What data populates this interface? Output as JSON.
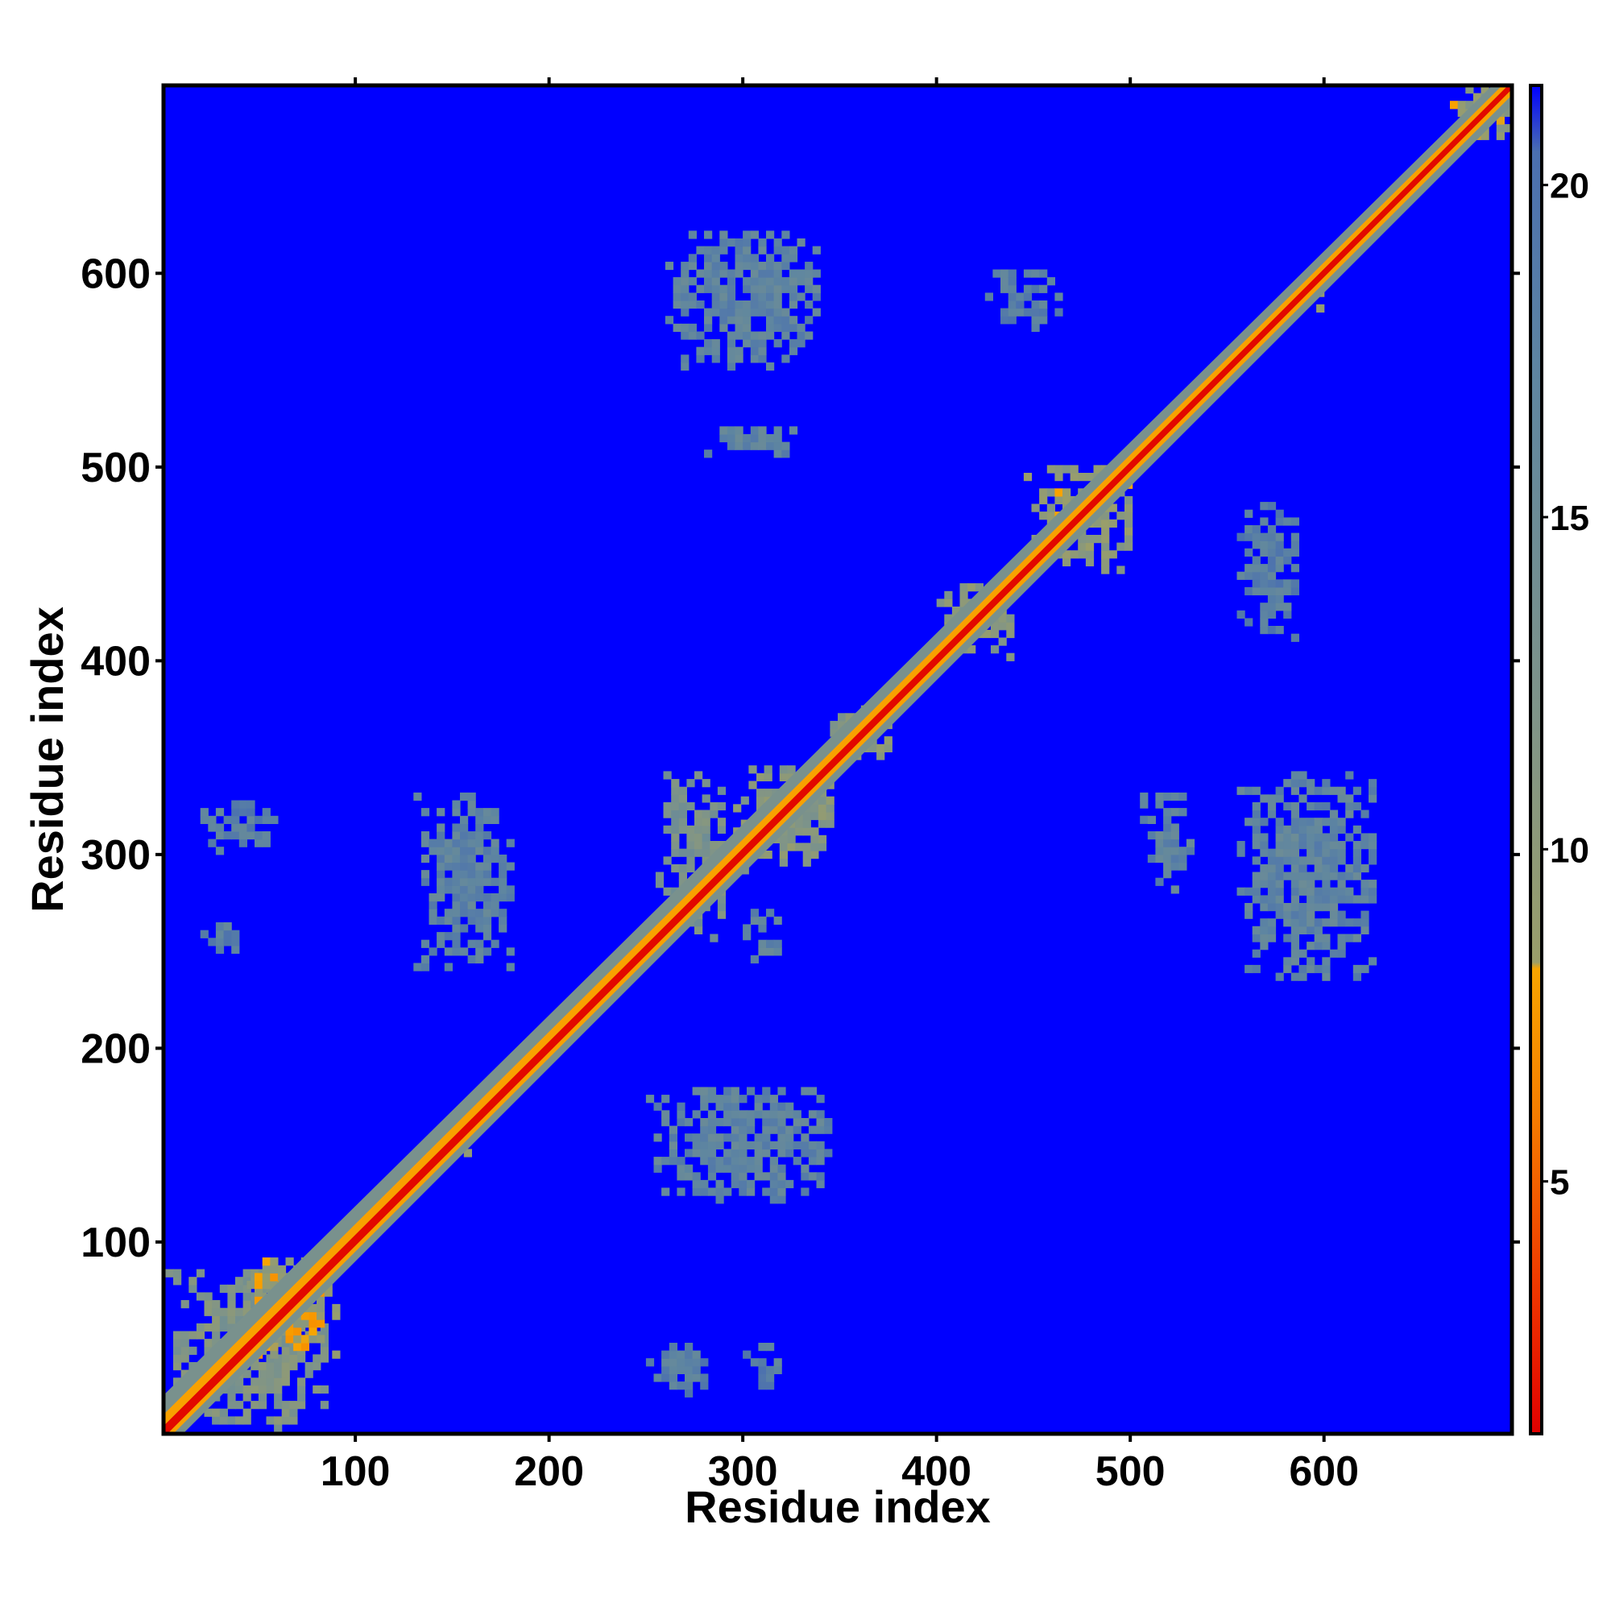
{
  "chart_data": {
    "type": "heatmap",
    "title": "",
    "xlabel": "Residue index",
    "ylabel": "Residue index",
    "xlim": [
      1,
      697
    ],
    "ylim": [
      1,
      697
    ],
    "x_ticks": [
      100,
      200,
      300,
      400,
      500,
      600
    ],
    "y_ticks": [
      100,
      200,
      300,
      400,
      500,
      600
    ],
    "x_tick_labels": [
      "100",
      "200",
      "300",
      "400",
      "500",
      "600"
    ],
    "y_tick_labels": [
      "100",
      "200",
      "300",
      "400",
      "500",
      "600"
    ],
    "colorbar": {
      "min": 1.2,
      "max": 21.5,
      "ticks": [
        5,
        10,
        15,
        20
      ],
      "tick_labels": [
        "5",
        "10",
        "15",
        "20"
      ],
      "stops": [
        {
          "value": 1.2,
          "color": "#e00000"
        },
        {
          "value": 3.5,
          "color": "#ef3a00"
        },
        {
          "value": 6.0,
          "color": "#f57d00"
        },
        {
          "value": 8.2,
          "color": "#f8a500"
        },
        {
          "value": 8.3,
          "color": "#9a9e6a"
        },
        {
          "value": 12.0,
          "color": "#7f9488"
        },
        {
          "value": 17.0,
          "color": "#5f86a0"
        },
        {
          "value": 20.5,
          "color": "#4a6fb0"
        },
        {
          "value": 21.5,
          "color": "#0000ff"
        }
      ]
    },
    "background_value": 21.5,
    "diagonal_value": 1.5,
    "contact_regions": [
      {
        "x": [
          2,
          85
        ],
        "y": [
          2,
          85
        ],
        "value": 12
      },
      {
        "x": [
          40,
          90
        ],
        "y": [
          40,
          90
        ],
        "value": 9
      },
      {
        "x": [
          140,
          160
        ],
        "y": [
          140,
          160
        ],
        "value": 9
      },
      {
        "x": [
          255,
          290
        ],
        "y": [
          255,
          340
        ],
        "value": 13
      },
      {
        "x": [
          295,
          345
        ],
        "y": [
          290,
          345
        ],
        "value": 11
      },
      {
        "x": [
          345,
          375
        ],
        "y": [
          345,
          375
        ],
        "value": 11
      },
      {
        "x": [
          400,
          440
        ],
        "y": [
          400,
          440
        ],
        "value": 11
      },
      {
        "x": [
          445,
          500
        ],
        "y": [
          445,
          500
        ],
        "value": 10
      },
      {
        "x": [
          580,
          600
        ],
        "y": [
          580,
          600
        ],
        "value": 9
      },
      {
        "x": [
          665,
          697
        ],
        "y": [
          665,
          697
        ],
        "value": 10
      },
      {
        "x": [
          130,
          180
        ],
        "y": [
          240,
          330
        ],
        "value": 17
      },
      {
        "x": [
          250,
          345
        ],
        "y": [
          120,
          180
        ],
        "value": 17
      },
      {
        "x": [
          260,
          340
        ],
        "y": [
          550,
          620
        ],
        "value": 17
      },
      {
        "x": [
          280,
          330
        ],
        "y": [
          505,
          520
        ],
        "value": 17
      },
      {
        "x": [
          20,
          60
        ],
        "y": [
          300,
          325
        ],
        "value": 18
      },
      {
        "x": [
          20,
          40
        ],
        "y": [
          245,
          265
        ],
        "value": 18
      },
      {
        "x": [
          555,
          625
        ],
        "y": [
          235,
          340
        ],
        "value": 17
      },
      {
        "x": [
          505,
          530
        ],
        "y": [
          280,
          330
        ],
        "value": 17
      },
      {
        "x": [
          555,
          585
        ],
        "y": [
          410,
          480
        ],
        "value": 18
      },
      {
        "x": [
          425,
          465
        ],
        "y": [
          570,
          600
        ],
        "value": 18
      },
      {
        "x": [
          300,
          320
        ],
        "y": [
          240,
          270
        ],
        "value": 17
      },
      {
        "x": [
          250,
          280
        ],
        "y": [
          20,
          45
        ],
        "value": 18
      },
      {
        "x": [
          300,
          320
        ],
        "y": [
          20,
          45
        ],
        "value": 18
      }
    ]
  }
}
